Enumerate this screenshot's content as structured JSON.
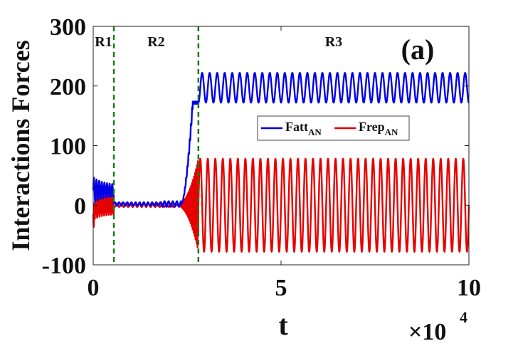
{
  "chart_data": {
    "type": "line",
    "panel_label": "(a)",
    "xlabel": "t",
    "ylabel": "Interactions Forces",
    "x_multiplier": "×10",
    "x_multiplier_exp": "4",
    "xlim": [
      0,
      100000
    ],
    "ylim": [
      -100,
      300
    ],
    "x_ticks": [
      0,
      50000,
      100000
    ],
    "x_tick_labels": [
      "0",
      "5",
      "10"
    ],
    "y_ticks": [
      -100,
      0,
      100,
      200,
      300
    ],
    "y_tick_labels": [
      "-100",
      "0",
      "100",
      "200",
      "300"
    ],
    "regions": [
      {
        "label": "R1",
        "start": 0,
        "end": 5500
      },
      {
        "label": "R2",
        "start": 5500,
        "end": 28000
      },
      {
        "label": "R3",
        "start": 28000,
        "end": 100000
      }
    ],
    "boundaries": [
      5500,
      28000
    ],
    "boundary_color": "#1a7a1a",
    "legend_position": "center-right",
    "series": [
      {
        "name": "Fatt",
        "name_sub": "AN",
        "color": "#0000e6",
        "segments": {
          "R1": {
            "center": 25,
            "amplitude": 22
          },
          "R2": {
            "center": 2,
            "amplitude": 3
          },
          "transition_level": 172,
          "R3": {
            "center": 197,
            "amplitude": 25,
            "min": 172,
            "max": 222,
            "period": 2000
          }
        }
      },
      {
        "name": "Frep",
        "name_sub": "AN",
        "color": "#e60000",
        "segments": {
          "R1": {
            "center": 0,
            "amplitude": 25
          },
          "R2": {
            "center": 0,
            "amplitude": 3
          },
          "R3": {
            "center": 0,
            "amplitude": 78,
            "min": -78,
            "max": 78,
            "period": 2000
          }
        }
      }
    ]
  }
}
